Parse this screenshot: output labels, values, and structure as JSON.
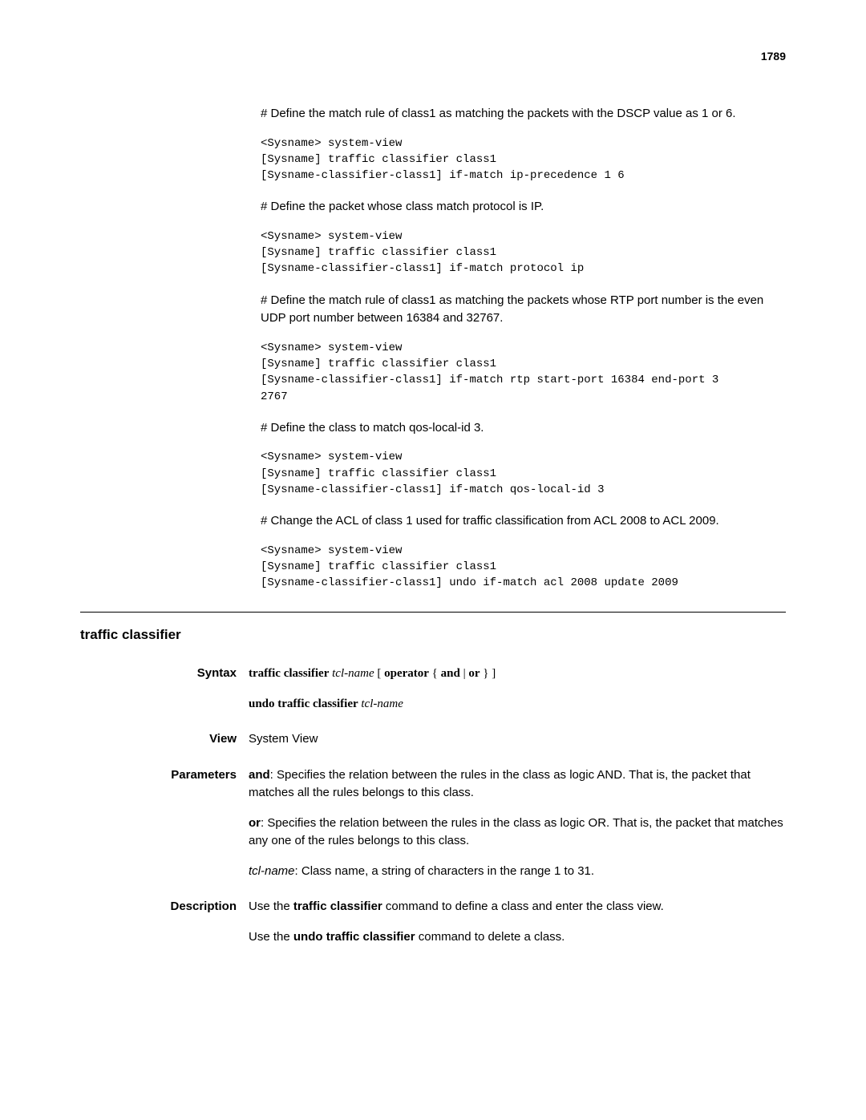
{
  "page_number": "1789",
  "top": {
    "para1": "# Define the match rule of class1 as matching the packets with the DSCP value as 1 or 6.",
    "code1": "<Sysname> system-view\n[Sysname] traffic classifier class1\n[Sysname-classifier-class1] if-match ip-precedence 1 6",
    "para2": "# Define the packet whose class match protocol is IP.",
    "code2": "<Sysname> system-view\n[Sysname] traffic classifier class1\n[Sysname-classifier-class1] if-match protocol ip",
    "para3": "# Define the match rule of class1 as matching the packets whose RTP port number is the even UDP port number between 16384 and 32767.",
    "code3": "<Sysname> system-view\n[Sysname] traffic classifier class1\n[Sysname-classifier-class1] if-match rtp start-port 16384 end-port 3\n2767",
    "para4": "# Define the class to match qos-local-id 3.",
    "code4": "<Sysname> system-view\n[Sysname] traffic classifier class1\n[Sysname-classifier-class1] if-match qos-local-id 3",
    "para5": "# Change the ACL of class 1 used for traffic classification from ACL 2008 to ACL 2009.",
    "code5": "<Sysname> system-view\n[Sysname] traffic classifier class1\n[Sysname-classifier-class1] undo if-match acl 2008 update 2009"
  },
  "section": {
    "title": "traffic classifier",
    "syntax": {
      "label": "Syntax",
      "line1_cmd": "traffic classifier",
      "line1_arg": "tcl-name",
      "line1_bracket_open": " [ ",
      "line1_operator": "operator",
      "line1_brace_open": " { ",
      "line1_and": "and",
      "line1_pipe": " | ",
      "line1_or": "or",
      "line1_brace_close": " } ]",
      "line2_cmd": "undo traffic classifier",
      "line2_arg": "tcl-name"
    },
    "view": {
      "label": "View",
      "text": "System View"
    },
    "parameters": {
      "label": "Parameters",
      "p1_key": "and",
      "p1_text": ": Specifies the relation between the rules in the class as logic AND. That is, the packet that matches all the rules belongs to this class.",
      "p2_key": "or",
      "p2_text": ": Specifies the relation between the rules in the class as logic OR. That is, the packet that matches any one of the rules belongs to this class.",
      "p3_key": "tcl-name",
      "p3_text": ": Class name, a string of characters in the range 1 to 31."
    },
    "description": {
      "label": "Description",
      "p1_pre": "Use the ",
      "p1_cmd": "traffic classifier",
      "p1_post": " command to define a class and enter the class view.",
      "p2_pre": "Use the ",
      "p2_cmd": "undo traffic classifier",
      "p2_post": " command to delete a class."
    }
  }
}
